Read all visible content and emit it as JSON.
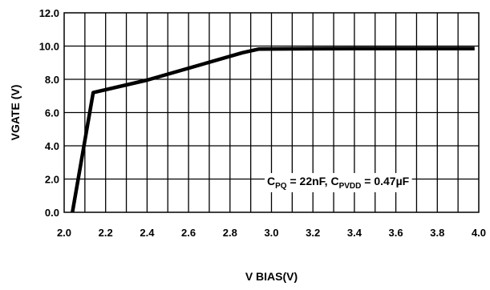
{
  "chart_data": {
    "type": "line",
    "xlabel": "V BIAS(V)",
    "ylabel": "VGATE (V)",
    "xlim": [
      2.0,
      4.0
    ],
    "ylim": [
      0.0,
      12.0
    ],
    "x_ticks": [
      "2.0",
      "2.2",
      "2.4",
      "2.6",
      "2.8",
      "3.0",
      "3.2",
      "3.4",
      "3.6",
      "3.8",
      "4.0"
    ],
    "x_tick_values": [
      2.0,
      2.2,
      2.4,
      2.6,
      2.8,
      3.0,
      3.2,
      3.4,
      3.6,
      3.8,
      4.0
    ],
    "y_ticks": [
      "0.0",
      "2.0",
      "4.0",
      "6.0",
      "8.0",
      "10.0",
      "12.0"
    ],
    "y_tick_values": [
      0,
      2,
      4,
      6,
      8,
      10,
      12
    ],
    "minor_x_step": 0.1,
    "grid": true,
    "series": [
      {
        "x": [
          2.04,
          2.14,
          2.4,
          2.86,
          2.94,
          3.4,
          3.98
        ],
        "y": [
          0.0,
          7.2,
          7.95,
          9.6,
          9.82,
          9.85,
          9.85
        ]
      }
    ],
    "annotation": {
      "c1_main": "C",
      "c1_sub": "PQ",
      "mid": " = 22nF, ",
      "c2_main": "C",
      "c2_sub": "PVDD",
      "end": " = 0.47µF"
    },
    "line_color": "#000000"
  }
}
